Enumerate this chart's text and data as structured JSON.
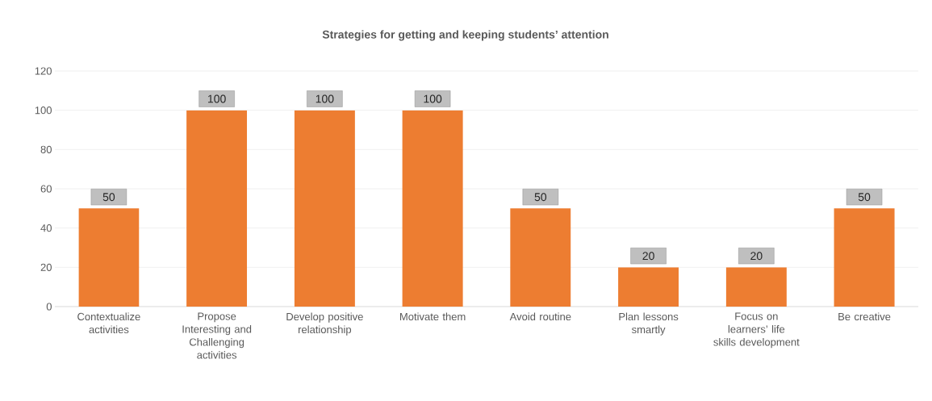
{
  "chart_data": {
    "type": "bar",
    "title": "Strategies for getting and keeping students’ attention",
    "categories": [
      "Contextualize activities",
      "Propose Interesting and Challenging activities",
      "Develop positive relationship",
      "Motivate them",
      "Avoid routine",
      "Plan lessons smartly",
      "Focus on learners’ life skills development",
      "Be creative"
    ],
    "values": [
      50,
      100,
      100,
      100,
      50,
      20,
      20,
      50
    ],
    "color": "#ed7d31",
    "ylim": [
      0,
      120
    ],
    "yticks": [
      0,
      20,
      40,
      60,
      80,
      100,
      120
    ],
    "grid": "y",
    "data_labels": true
  }
}
